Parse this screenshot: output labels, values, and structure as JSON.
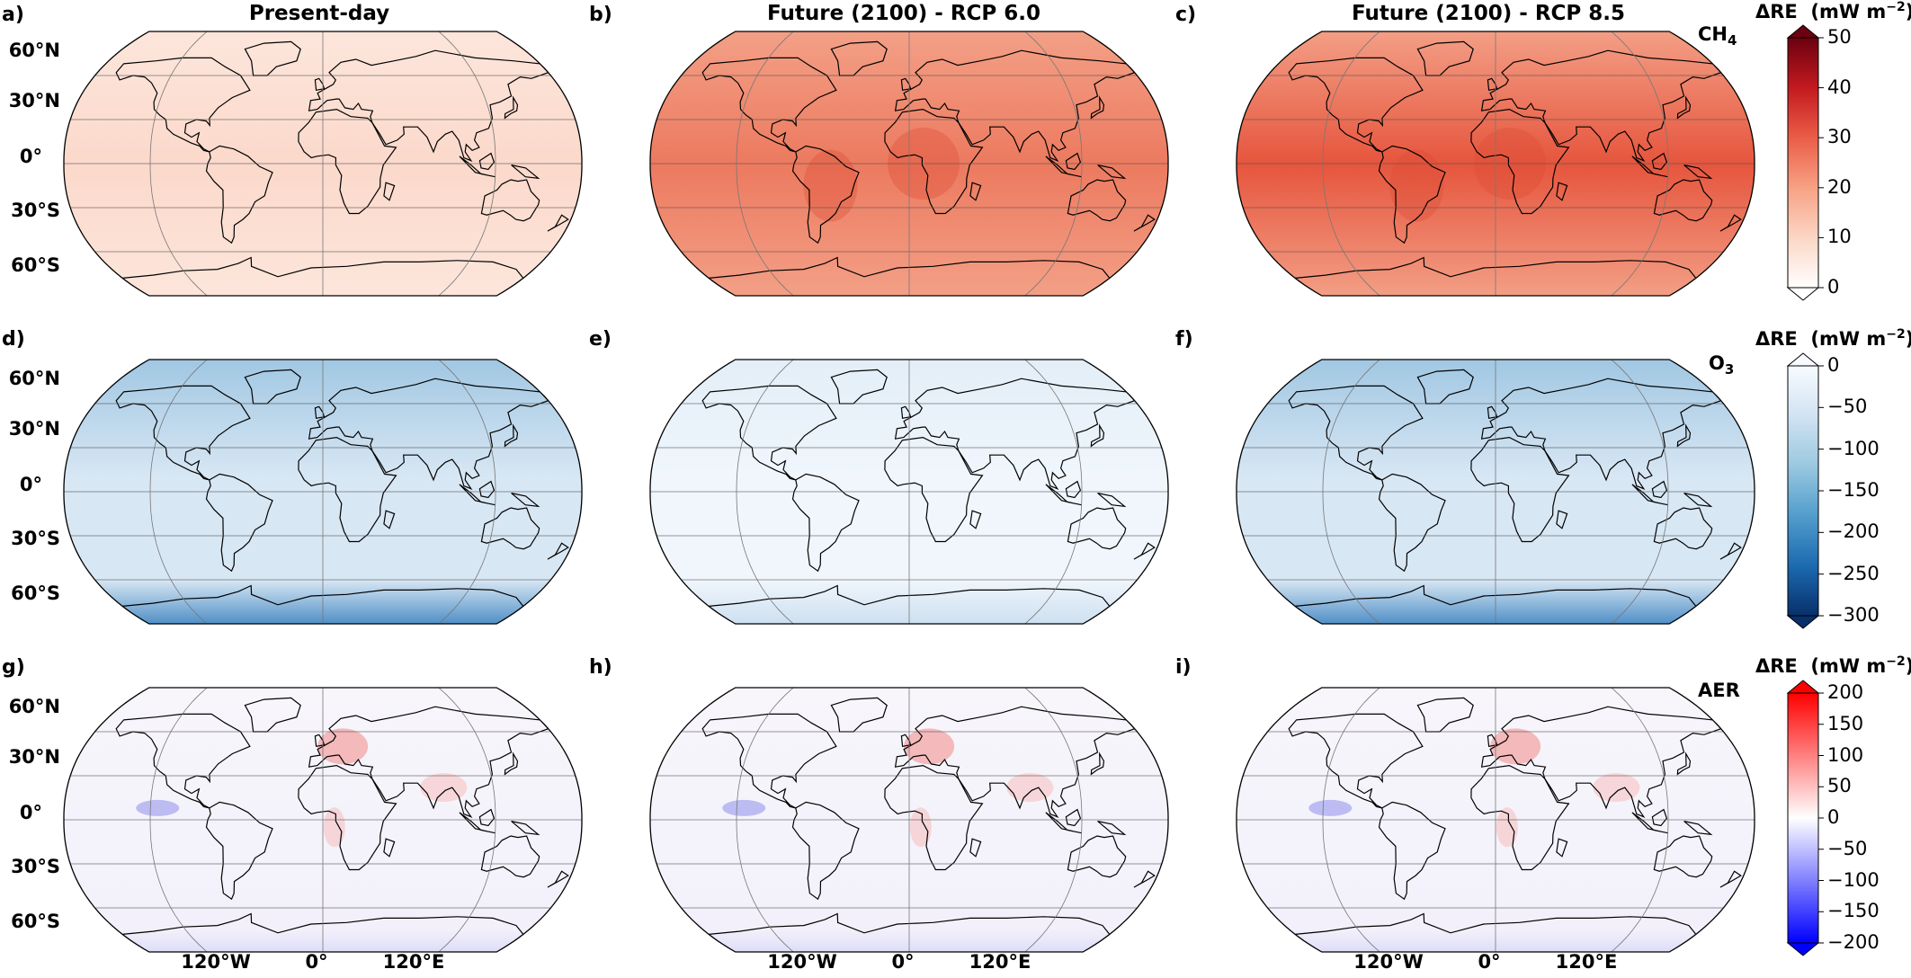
{
  "columns": [
    {
      "title": "Present-day"
    },
    {
      "title": "Future (2100) - RCP 6.0"
    },
    {
      "title": "Future (2100) - RCP 8.5"
    }
  ],
  "panels": [
    "a)",
    "b)",
    "c)",
    "d)",
    "e)",
    "f)",
    "g)",
    "h)",
    "i)"
  ],
  "lat_labels": [
    "60°N",
    "30°N",
    "0°",
    "30°S",
    "60°S"
  ],
  "lon_labels": [
    "120°W",
    "0°",
    "120°E"
  ],
  "rows": [
    {
      "species_main": "CH",
      "species_sub": "4",
      "colorbar": {
        "title": "ΔRE",
        "unit_base": "(mW m",
        "unit_exp": "−2",
        "unit_close": ")",
        "ticks": [
          "50",
          "40",
          "30",
          "20",
          "10",
          "0"
        ],
        "range": [
          0,
          50
        ],
        "extend": "max",
        "colors": [
          "#ffffff",
          "#fcd6c5",
          "#f7a184",
          "#ea5d47",
          "#c31a1f",
          "#6b0010"
        ]
      }
    },
    {
      "species_main": "O",
      "species_sub": "3",
      "colorbar": {
        "title": "ΔRE",
        "unit_base": "(mW m",
        "unit_exp": "−2",
        "unit_close": ")",
        "ticks": [
          "0",
          "−50",
          "−100",
          "−150",
          "−200",
          "−250",
          "−300"
        ],
        "range": [
          -300,
          0
        ],
        "extend": "min",
        "colors": [
          "#f7fbff",
          "#d2e3f3",
          "#9ac8e0",
          "#529dcc",
          "#1c6ab0",
          "#08306b"
        ]
      }
    },
    {
      "species_main": "AER",
      "species_sub": "",
      "colorbar": {
        "title": "ΔRE",
        "unit_base": "(mW m",
        "unit_exp": "−2",
        "unit_close": ")",
        "ticks": [
          "200",
          "150",
          "100",
          "50",
          "0",
          "−50",
          "−100",
          "−150",
          "−200"
        ],
        "range": [
          -200,
          200
        ],
        "extend": "both",
        "colors": [
          "#ff0000",
          "#ff8080",
          "#ffffff",
          "#8080ff",
          "#0000ff"
        ]
      }
    }
  ],
  "map_style": {
    "ch4": [
      "#fbe2d7",
      "#f18468",
      "#ea6a50"
    ],
    "o3": [
      "#cfe1f1",
      "#e9f2fa",
      "#c7dcee"
    ],
    "aer": [
      "#f4f4fb",
      "#f5f4fb",
      "#f3f3fb"
    ]
  }
}
